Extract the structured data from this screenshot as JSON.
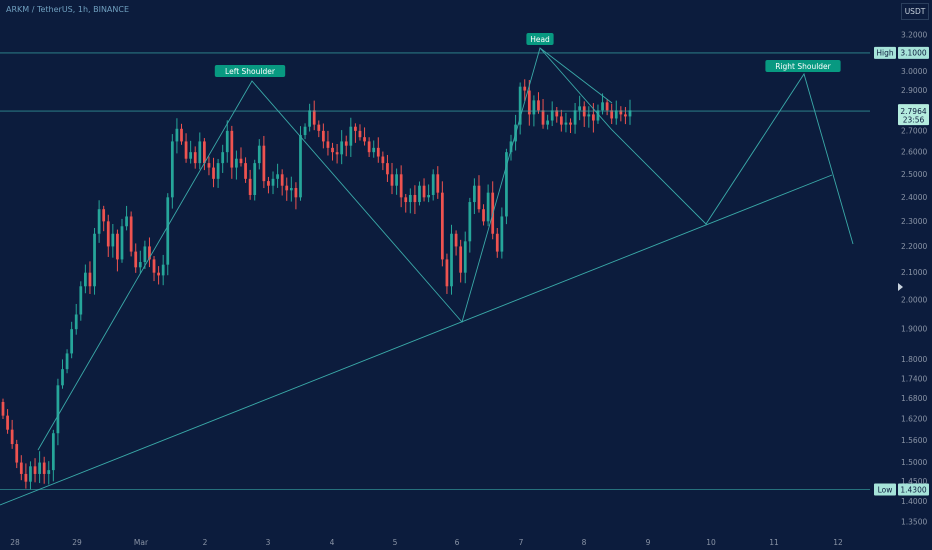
{
  "header": {
    "title": "ARKM / TetherUS, 1h, BINANCE",
    "currency": "USDT"
  },
  "colors": {
    "background": "#0c1c3d",
    "up": "#26a69a",
    "down": "#ef5350",
    "pattern_line": "#3aa9a8",
    "label_bg": "#089981",
    "axis_text": "#8a94a6",
    "grid": "#2b3f5d"
  },
  "chart_data": {
    "type": "candlestick",
    "title": "ARKM / TetherUS, 1h, BINANCE",
    "scale": "log",
    "ylim": [
      1.32,
      3.26
    ],
    "y_ticks": [
      "3.2000",
      "3.1000",
      "3.0000",
      "2.9000",
      "2.8000",
      "2.7000",
      "2.6000",
      "2.5000",
      "2.4000",
      "2.3000",
      "2.2000",
      "2.1000",
      "2.0000",
      "1.9000",
      "1.8000",
      "1.7400",
      "1.6800",
      "1.6200",
      "1.5600",
      "1.5000",
      "1.4500",
      "1.4000",
      "1.3500"
    ],
    "x_ticks": [
      "28",
      "29",
      "Mar",
      "2",
      "3",
      "4",
      "5",
      "6",
      "7",
      "8",
      "9",
      "10",
      "11",
      "12"
    ],
    "price_close": [
      1.63,
      1.59,
      1.55,
      1.5,
      1.47,
      1.45,
      1.49,
      1.47,
      1.5,
      1.47,
      1.48,
      1.58,
      1.72,
      1.77,
      1.82,
      1.9,
      1.95,
      2.05,
      2.1,
      2.05,
      2.25,
      2.35,
      2.3,
      2.2,
      2.25,
      2.15,
      2.28,
      2.32,
      2.18,
      2.12,
      2.14,
      2.2,
      2.15,
      2.1,
      2.09,
      2.13,
      2.4,
      2.65,
      2.71,
      2.65,
      2.57,
      2.6,
      2.55,
      2.65,
      2.55,
      2.53,
      2.48,
      2.55,
      2.6,
      2.7,
      2.53,
      2.57,
      2.55,
      2.48,
      2.41,
      2.55,
      2.63,
      2.47,
      2.45,
      2.48,
      2.5,
      2.45,
      2.43,
      2.44,
      2.4,
      2.68,
      2.72,
      2.8,
      2.73,
      2.7,
      2.65,
      2.62,
      2.6,
      2.59,
      2.65,
      2.63,
      2.72,
      2.7,
      2.67,
      2.65,
      2.6,
      2.62,
      2.58,
      2.55,
      2.5,
      2.45,
      2.5,
      2.4,
      2.38,
      2.41,
      2.38,
      2.45,
      2.4,
      2.41,
      2.5,
      2.42,
      2.15,
      2.05,
      2.25,
      2.2,
      2.1,
      2.22,
      2.38,
      2.45,
      2.35,
      2.3,
      2.42,
      2.25,
      2.18,
      2.32,
      2.6,
      2.65,
      2.73,
      2.92,
      2.9,
      2.78,
      2.85,
      2.8,
      2.73,
      2.75,
      2.8,
      2.77,
      2.73,
      2.74,
      2.73,
      2.8,
      2.82,
      2.77,
      2.78,
      2.75,
      2.8,
      2.84,
      2.8,
      2.76,
      2.8,
      2.78,
      2.77,
      2.8
    ],
    "levels": [
      {
        "label": "High",
        "value": "3.1000",
        "price": 3.1
      },
      {
        "label": "Low",
        "value": "1.4300",
        "price": 1.43
      },
      {
        "label": "",
        "value": "2.7964",
        "price": 2.7964,
        "countdown": "23:56"
      }
    ],
    "pattern_labels": [
      "Left Shoulder",
      "Head",
      "Right Shoulder"
    ]
  }
}
